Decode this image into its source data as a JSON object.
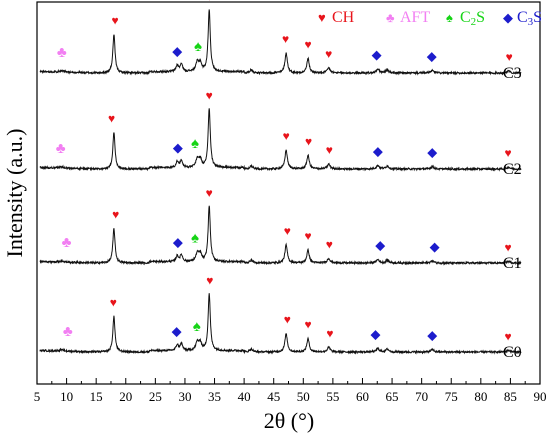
{
  "chart_data": {
    "type": "line",
    "xlabel": "2θ (°)",
    "ylabel": "Intensity (a.u.)",
    "xlim": [
      5,
      90
    ],
    "x_ticks": [
      5,
      10,
      15,
      20,
      25,
      30,
      35,
      40,
      45,
      50,
      55,
      60,
      65,
      70,
      75,
      80,
      85,
      90
    ],
    "y_ticks_shown": false,
    "grid": false,
    "legend": {
      "placement": "top-right",
      "entries": [
        {
          "symbol": "♥",
          "label_main": "CH",
          "label_sub": "",
          "label_tail": "",
          "color": "#e8141b"
        },
        {
          "symbol": "♣",
          "label_main": "AFT",
          "label_sub": "",
          "label_tail": "",
          "color": "#f27ff2"
        },
        {
          "symbol": "♠",
          "label_main": "C",
          "label_sub": "2",
          "label_tail": "S",
          "color": "#16d416"
        },
        {
          "symbol": "◆",
          "label_main": "C",
          "label_sub": "3",
          "label_tail": "S",
          "color": "#1c1ccc"
        }
      ]
    },
    "peaks": [
      {
        "two_theta": 9.1,
        "height": 0.02,
        "width": 0.5
      },
      {
        "two_theta": 18.0,
        "height": 0.62,
        "width": 0.22
      },
      {
        "two_theta": 28.7,
        "height": 0.1,
        "width": 0.25
      },
      {
        "two_theta": 29.4,
        "height": 0.12,
        "width": 0.25
      },
      {
        "two_theta": 32.1,
        "height": 0.15,
        "width": 0.3
      },
      {
        "two_theta": 32.6,
        "height": 0.13,
        "width": 0.25
      },
      {
        "two_theta": 34.1,
        "height": 1.0,
        "width": 0.22
      },
      {
        "two_theta": 41.2,
        "height": 0.05,
        "width": 0.3
      },
      {
        "two_theta": 47.1,
        "height": 0.32,
        "width": 0.25
      },
      {
        "two_theta": 50.8,
        "height": 0.23,
        "width": 0.25
      },
      {
        "two_theta": 54.3,
        "height": 0.08,
        "width": 0.3
      },
      {
        "two_theta": 62.6,
        "height": 0.06,
        "width": 0.3
      },
      {
        "two_theta": 64.2,
        "height": 0.05,
        "width": 0.3
      },
      {
        "two_theta": 71.8,
        "height": 0.04,
        "width": 0.3
      },
      {
        "two_theta": 84.7,
        "height": 0.03,
        "width": 0.3
      }
    ],
    "series": [
      {
        "name": "C3",
        "scale": 1.0,
        "markers": [
          {
            "phase": "AFT",
            "two_theta": 9.2
          },
          {
            "phase": "CH",
            "two_theta": 18.2
          },
          {
            "phase": "C3S",
            "two_theta": 28.7
          },
          {
            "phase": "C2S",
            "two_theta": 32.2
          },
          {
            "phase": "CH",
            "two_theta": 34.1
          },
          {
            "phase": "CH",
            "two_theta": 47.0
          },
          {
            "phase": "CH",
            "two_theta": 50.8
          },
          {
            "phase": "CH",
            "two_theta": 54.3
          },
          {
            "phase": "C3S",
            "two_theta": 62.4
          },
          {
            "phase": "C3S",
            "two_theta": 71.7
          },
          {
            "phase": "CH",
            "two_theta": 84.8
          }
        ]
      },
      {
        "name": "C2",
        "scale": 0.95,
        "markers": [
          {
            "phase": "AFT",
            "two_theta": 9.0
          },
          {
            "phase": "CH",
            "two_theta": 17.6
          },
          {
            "phase": "C3S",
            "two_theta": 28.8
          },
          {
            "phase": "C2S",
            "two_theta": 31.7
          },
          {
            "phase": "CH",
            "two_theta": 34.1
          },
          {
            "phase": "CH",
            "two_theta": 47.1
          },
          {
            "phase": "CH",
            "two_theta": 50.9
          },
          {
            "phase": "CH",
            "two_theta": 54.4
          },
          {
            "phase": "C3S",
            "two_theta": 62.6
          },
          {
            "phase": "C3S",
            "two_theta": 71.8
          },
          {
            "phase": "CH",
            "two_theta": 84.6
          }
        ]
      },
      {
        "name": "C1",
        "scale": 0.9,
        "markers": [
          {
            "phase": "AFT",
            "two_theta": 10.0
          },
          {
            "phase": "CH",
            "two_theta": 18.3
          },
          {
            "phase": "C3S",
            "two_theta": 28.8
          },
          {
            "phase": "C2S",
            "two_theta": 31.7
          },
          {
            "phase": "CH",
            "two_theta": 34.1
          },
          {
            "phase": "CH",
            "two_theta": 47.3
          },
          {
            "phase": "CH",
            "two_theta": 50.8
          },
          {
            "phase": "CH",
            "two_theta": 54.4
          },
          {
            "phase": "C3S",
            "two_theta": 63.0
          },
          {
            "phase": "C3S",
            "two_theta": 72.2
          },
          {
            "phase": "CH",
            "two_theta": 84.6
          }
        ]
      },
      {
        "name": "C0",
        "scale": 0.92,
        "markers": [
          {
            "phase": "AFT",
            "two_theta": 10.2
          },
          {
            "phase": "CH",
            "two_theta": 17.9
          },
          {
            "phase": "C3S",
            "two_theta": 28.6
          },
          {
            "phase": "C2S",
            "two_theta": 32.0
          },
          {
            "phase": "CH",
            "two_theta": 34.2
          },
          {
            "phase": "CH",
            "two_theta": 47.3
          },
          {
            "phase": "CH",
            "two_theta": 50.8
          },
          {
            "phase": "CH",
            "two_theta": 54.5
          },
          {
            "phase": "C3S",
            "two_theta": 62.2
          },
          {
            "phase": "C3S",
            "two_theta": 71.8
          },
          {
            "phase": "CH",
            "two_theta": 84.6
          }
        ]
      }
    ]
  }
}
